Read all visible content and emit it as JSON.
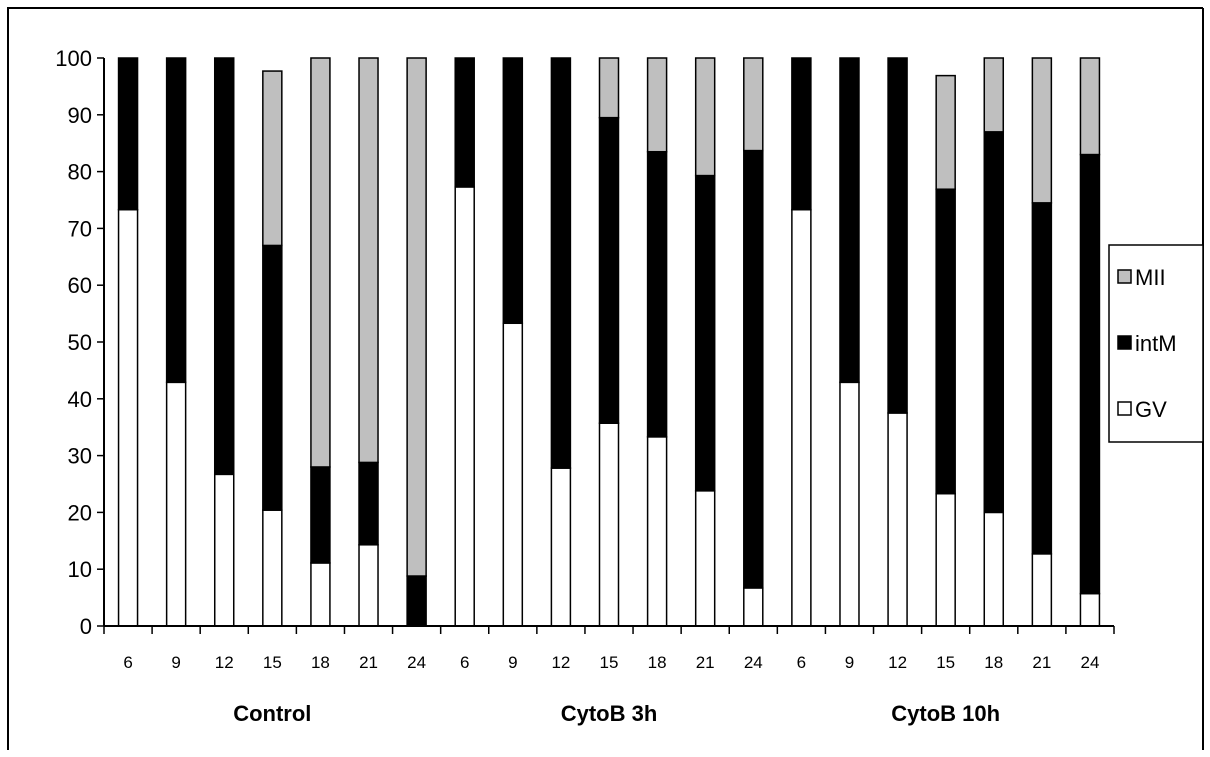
{
  "chart_data": {
    "type": "bar",
    "stacked": true,
    "categories": [
      "6",
      "9",
      "12",
      "15",
      "18",
      "21",
      "24",
      "6",
      "9",
      "12",
      "15",
      "18",
      "21",
      "24",
      "6",
      "9",
      "12",
      "15",
      "18",
      "21",
      "24"
    ],
    "groups": [
      {
        "label": "Control",
        "categories": [
          "6",
          "9",
          "12",
          "15",
          "18",
          "21",
          "24"
        ]
      },
      {
        "label": "CytoB 3h",
        "categories": [
          "6",
          "9",
          "12",
          "15",
          "18",
          "21",
          "24"
        ]
      },
      {
        "label": "CytoB 10h",
        "categories": [
          "6",
          "9",
          "12",
          "15",
          "18",
          "21",
          "24"
        ]
      }
    ],
    "series": [
      {
        "name": "GV",
        "color": "#ffffff",
        "values": [
          73.3,
          42.9,
          26.7,
          20.4,
          11.1,
          14.3,
          0,
          77.3,
          53.3,
          27.8,
          35.7,
          33.3,
          23.8,
          6.7,
          73.3,
          42.9,
          37.5,
          23.3,
          20.0,
          12.7,
          5.7
        ]
      },
      {
        "name": "intM",
        "color": "#000000",
        "values": [
          26.7,
          57.1,
          73.3,
          46.6,
          16.9,
          14.5,
          8.8,
          22.7,
          46.7,
          72.2,
          53.8,
          50.2,
          55.5,
          77.0,
          26.7,
          57.1,
          62.5,
          53.6,
          67.0,
          61.8,
          77.3
        ]
      },
      {
        "name": "MII",
        "color": "#bfbfbf",
        "values": [
          0,
          0,
          0,
          30.7,
          72.0,
          71.2,
          91.2,
          0,
          0,
          0,
          10.5,
          16.5,
          20.7,
          16.3,
          0,
          0,
          0,
          20.0,
          13.0,
          25.5,
          17.0
        ]
      }
    ],
    "ylim": [
      0,
      100
    ],
    "yticks": [
      "0",
      "10",
      "20",
      "30",
      "40",
      "50",
      "60",
      "70",
      "80",
      "90",
      "100"
    ],
    "legend": {
      "position": "right",
      "entries": [
        "MII",
        "intM",
        "GV"
      ]
    },
    "grid": false
  }
}
